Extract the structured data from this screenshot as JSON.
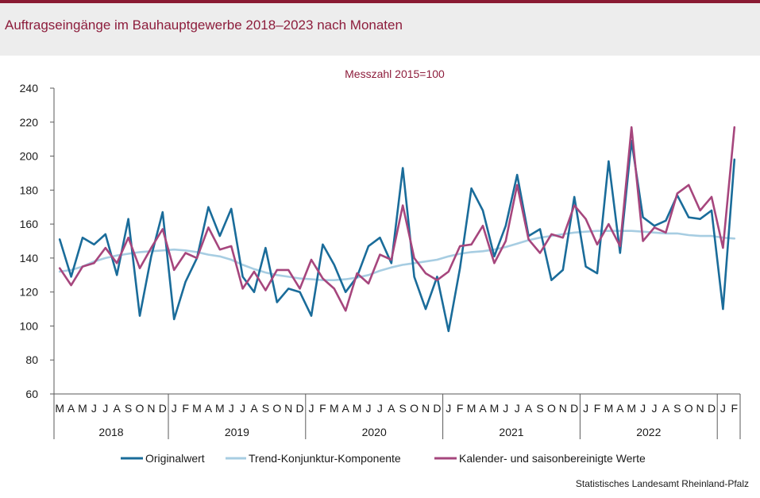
{
  "title": "Auftragseingänge im Bauhauptgewerbe 2018–2023 nach Monaten",
  "source": "Statistisches Landesamt Rheinland-Pfalz",
  "colors": {
    "top_bar": "#8a1b33",
    "title": "#8d1d3c",
    "subtitle": "#8d1d3c"
  },
  "chart_data": {
    "type": "line",
    "subtitle": "Messzahl 2015=100",
    "ylim": [
      60,
      240
    ],
    "yticks": [
      240,
      220,
      200,
      180,
      160,
      140,
      120,
      100,
      80,
      60
    ],
    "x": [
      "M",
      "A",
      "M",
      "J",
      "J",
      "A",
      "S",
      "O",
      "N",
      "D",
      "J",
      "F",
      "M",
      "A",
      "M",
      "J",
      "J",
      "A",
      "S",
      "O",
      "N",
      "D",
      "J",
      "F",
      "M",
      "A",
      "M",
      "J",
      "J",
      "A",
      "S",
      "O",
      "N",
      "D",
      "J",
      "F",
      "M",
      "A",
      "M",
      "J",
      "J",
      "A",
      "S",
      "O",
      "N",
      "D",
      "J",
      "F",
      "M",
      "A",
      "M",
      "J",
      "J",
      "A",
      "S",
      "O",
      "N",
      "D",
      "J",
      "F"
    ],
    "years": [
      {
        "label": "2018",
        "span": 10
      },
      {
        "label": "2019",
        "span": 12
      },
      {
        "label": "2020",
        "span": 12
      },
      {
        "label": "2021",
        "span": 12
      },
      {
        "label": "2022",
        "span": 12
      },
      {
        "label": "",
        "span": 2
      }
    ],
    "legend_position": "bottom",
    "series": [
      {
        "key": "trend",
        "name": "Trend-Konjunktur-Komponente",
        "color": "#a7cde2",
        "values": [
          132,
          133,
          135,
          138,
          140,
          141.5,
          142.5,
          143.5,
          144,
          144.5,
          145,
          144.5,
          143.5,
          142,
          141,
          139,
          136,
          133.5,
          131.5,
          130,
          129,
          128,
          127.5,
          127,
          127,
          127.5,
          128.5,
          130,
          132.5,
          134.5,
          136,
          137,
          138,
          139,
          141,
          142.5,
          143.5,
          144,
          145,
          146.5,
          148.5,
          150.5,
          152,
          153,
          154,
          155,
          155.5,
          156,
          156,
          156,
          156,
          155.5,
          155,
          154.5,
          154.5,
          153.5,
          153,
          153,
          152,
          151.5
        ]
      },
      {
        "key": "original",
        "name": "Originalwert",
        "color": "#1a6c9a",
        "values": [
          151,
          129,
          152,
          148,
          154,
          130,
          163,
          106,
          141,
          167,
          104,
          126,
          140,
          170,
          153,
          169,
          129,
          120,
          146,
          114,
          122,
          120,
          106,
          148,
          136,
          120,
          129,
          147,
          152,
          137,
          193,
          129,
          110,
          129,
          97,
          134,
          181,
          168,
          141,
          159,
          189,
          153,
          157,
          127,
          133,
          176,
          135,
          131,
          197,
          143,
          209,
          164,
          159,
          162,
          177,
          164,
          163,
          168,
          110,
          198
        ]
      },
      {
        "key": "seasonal",
        "name": "Kalender- und saisonbereinigte Werte",
        "color": "#a6467d",
        "values": [
          134,
          124,
          135,
          137,
          146,
          137,
          152,
          134,
          146,
          157,
          133,
          143,
          140,
          158,
          145,
          147,
          122,
          132,
          121,
          133,
          133,
          122,
          139,
          128,
          122,
          109,
          131,
          125,
          142,
          139,
          171,
          140,
          131,
          127,
          132,
          147,
          148,
          159,
          137,
          150,
          183,
          151,
          143,
          154,
          152,
          171,
          163,
          148,
          160,
          147,
          217,
          150,
          158,
          155,
          178,
          183,
          168,
          176,
          146,
          217
        ]
      }
    ]
  }
}
